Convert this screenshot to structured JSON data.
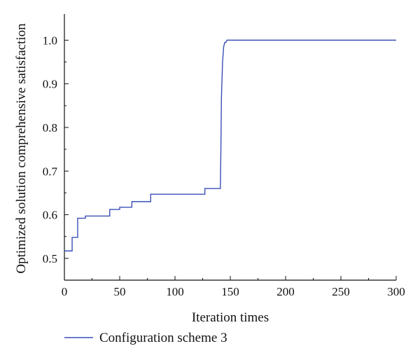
{
  "chart_data": {
    "type": "line",
    "title": "",
    "xlabel": "Iteration times",
    "ylabel": "Optimized solution comprehensive satisfaction",
    "xlim": [
      0,
      300
    ],
    "ylim": [
      0.45,
      1.06
    ],
    "xticks": [
      0,
      50,
      100,
      150,
      200,
      250,
      300
    ],
    "yticks": [
      0.5,
      0.6,
      0.7,
      0.8,
      0.9,
      1.0
    ],
    "xtick_labels": [
      "0",
      "50",
      "100",
      "150",
      "200",
      "250",
      "300"
    ],
    "ytick_labels": [
      "0.5",
      "0.6",
      "0.7",
      "0.8",
      "0.9",
      "1.0"
    ],
    "grid": false,
    "legend_position": "bottom-left",
    "series": [
      {
        "name": "Configuration scheme 3",
        "color": "#3a4fb8",
        "x": [
          0,
          7,
          7,
          12,
          12,
          14,
          14,
          19,
          19,
          41,
          41,
          50,
          50,
          58,
          58,
          61,
          61,
          78,
          78,
          127,
          127,
          141,
          141.5,
          142,
          143,
          144,
          145,
          146,
          147,
          300
        ],
        "y": [
          0.517,
          0.517,
          0.548,
          0.548,
          0.592,
          0.592,
          0.592,
          0.592,
          0.597,
          0.597,
          0.612,
          0.612,
          0.617,
          0.617,
          0.617,
          0.617,
          0.63,
          0.63,
          0.647,
          0.647,
          0.66,
          0.66,
          0.75,
          0.87,
          0.95,
          0.985,
          0.995,
          0.995,
          1.0,
          1.0
        ]
      }
    ]
  }
}
